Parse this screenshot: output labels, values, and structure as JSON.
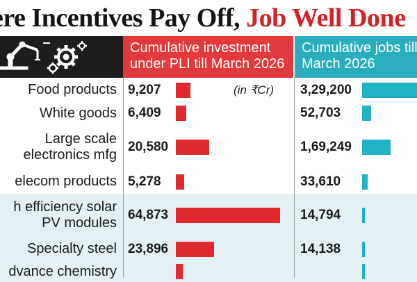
{
  "headline": {
    "part1": "ere Incentives Pay Off, ",
    "part2": "Job Well Done"
  },
  "columns": {
    "investment_header": [
      "Cumulative investment",
      "under PLI till March 2026"
    ],
    "jobs_header": [
      "Cumulative jobs till",
      "March 2026"
    ],
    "unit_note": "(in ₹Cr)"
  },
  "colors": {
    "investment": "#e12a2f",
    "jobs": "#21b2c3",
    "header_dark": "#1d1d1d"
  },
  "icon": "industrial-robot-arm-and-gears-icon",
  "chart_data": {
    "type": "table",
    "title": "ere Incentives Pay Off, Job Well Done",
    "categories": [
      "Food products",
      "White goods",
      "Large scale electronics mfg",
      "elecom products",
      "h efficiency solar PV modules",
      "Specialty steel",
      "dvance chemistry"
    ],
    "series": [
      {
        "name": "Cumulative investment under PLI till March 2026",
        "labels": [
          "9,207",
          "6,409",
          "20,580",
          "5,278",
          "64,873",
          "23,896",
          ""
        ],
        "values": [
          9207,
          6409,
          20580,
          5278,
          64873,
          23896,
          4000
        ]
      },
      {
        "name": "Cumulative jobs till March 2026",
        "labels": [
          "3,29,200",
          "52,703",
          "1,69,249",
          "33,610",
          "14,794",
          "14,138",
          ""
        ],
        "values": [
          329200,
          52703,
          169249,
          33610,
          14794,
          14138,
          4000
        ]
      }
    ]
  },
  "rows": [
    {
      "label": [
        "Food products"
      ],
      "investment": "9,207",
      "jobs": "3,29,200"
    },
    {
      "label": [
        "White goods"
      ],
      "investment": "6,409",
      "jobs": "52,703"
    },
    {
      "label": [
        "Large scale",
        "electronics mfg"
      ],
      "investment": "20,580",
      "jobs": "1,69,249"
    },
    {
      "label": [
        "elecom products"
      ],
      "investment": "5,278",
      "jobs": "33,610"
    },
    {
      "label": [
        "h efficiency solar",
        "PV modules"
      ],
      "investment": "64,873",
      "jobs": "14,794"
    },
    {
      "label": [
        "Specialty steel"
      ],
      "investment": "23,896",
      "jobs": "14,138"
    },
    {
      "label": [
        "dvance chemistry"
      ],
      "investment": "",
      "jobs": ""
    }
  ]
}
